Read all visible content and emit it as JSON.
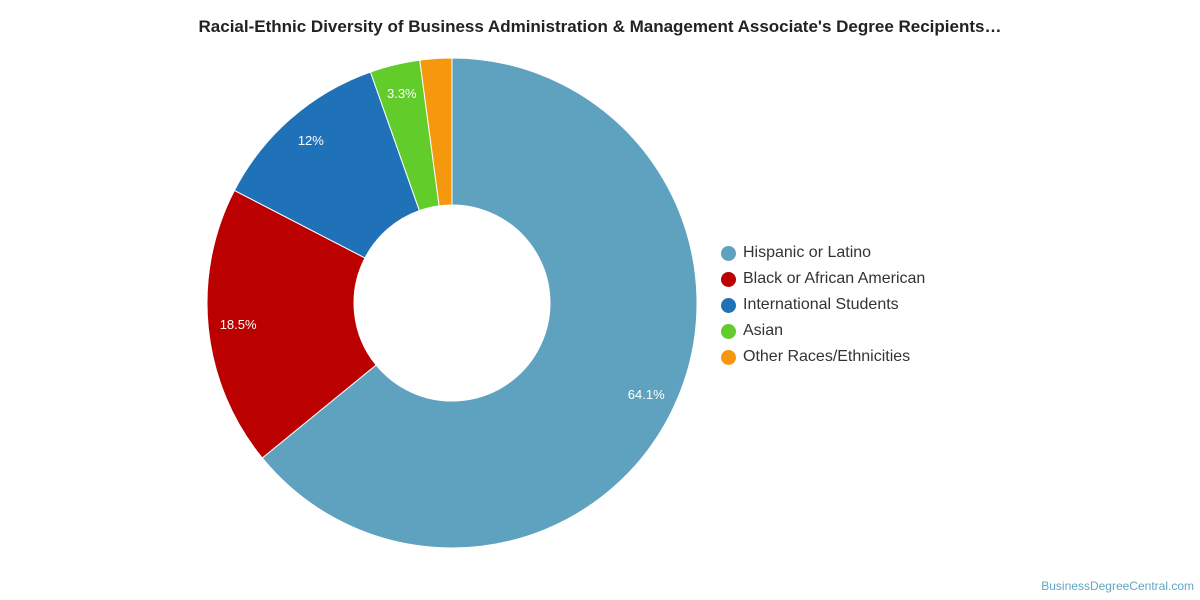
{
  "chart_data": {
    "type": "pie",
    "title": "Racial-Ethnic Diversity of Business Administration & Management Associate's Degree Recipients…",
    "donut": true,
    "slices": [
      {
        "name": "Hispanic or Latino",
        "value": 64.1,
        "label": "64.1%",
        "color": "#5fa2bf"
      },
      {
        "name": "Black or African American",
        "value": 18.5,
        "label": "18.5%",
        "color": "#bb0000"
      },
      {
        "name": "International Students",
        "value": 12,
        "label": "12%",
        "color": "#1f72b8"
      },
      {
        "name": "Asian",
        "value": 3.3,
        "label": "3.3%",
        "color": "#62cc2a"
      },
      {
        "name": "Other Races/Ethnicities",
        "value": 2.1,
        "label": "",
        "color": "#f5980d"
      }
    ],
    "legend_position": "right"
  },
  "credit": "BusinessDegreeCentral.com"
}
